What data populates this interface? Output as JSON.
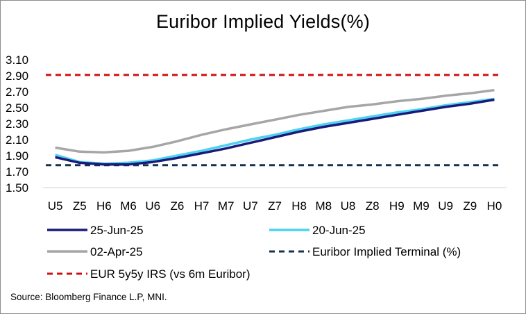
{
  "chart_data": {
    "type": "line",
    "title": "Euribor Implied Yields(%)",
    "categories": [
      "U5",
      "Z5",
      "H6",
      "M6",
      "U6",
      "Z6",
      "H7",
      "M7",
      "U7",
      "Z7",
      "H8",
      "M8",
      "U8",
      "Z8",
      "H9",
      "M9",
      "U9",
      "Z9",
      "H0"
    ],
    "ylim": [
      1.5,
      3.1
    ],
    "yticks": [
      "3.10",
      "2.90",
      "2.70",
      "2.50",
      "2.30",
      "2.10",
      "1.90",
      "1.70",
      "1.50"
    ],
    "xlabel": "",
    "ylabel": "",
    "series": [
      {
        "name": "25-Jun-25",
        "color": "#1a1a7a",
        "dash": "solid",
        "values": [
          1.88,
          1.81,
          1.79,
          1.79,
          1.82,
          1.87,
          1.93,
          1.99,
          2.06,
          2.13,
          2.2,
          2.26,
          2.31,
          2.36,
          2.41,
          2.46,
          2.51,
          2.55,
          2.6
        ]
      },
      {
        "name": "20-Jun-25",
        "color": "#4dd2f0",
        "dash": "solid",
        "values": [
          1.91,
          1.82,
          1.8,
          1.81,
          1.84,
          1.9,
          1.96,
          2.03,
          2.1,
          2.16,
          2.23,
          2.29,
          2.34,
          2.39,
          2.44,
          2.48,
          2.53,
          2.57,
          2.61
        ]
      },
      {
        "name": "02-Apr-25",
        "color": "#a6a6a6",
        "dash": "solid",
        "values": [
          2.0,
          1.95,
          1.94,
          1.96,
          2.01,
          2.08,
          2.16,
          2.23,
          2.29,
          2.35,
          2.41,
          2.46,
          2.51,
          2.54,
          2.58,
          2.61,
          2.65,
          2.68,
          2.72
        ]
      },
      {
        "name": "Euribor Implied Terminal (%)",
        "color": "#17324d",
        "dash": "dashed",
        "values": [
          1.78,
          1.78,
          1.78,
          1.78,
          1.78,
          1.78,
          1.78,
          1.78,
          1.78,
          1.78,
          1.78,
          1.78,
          1.78,
          1.78,
          1.78,
          1.78,
          1.78,
          1.78,
          1.78
        ]
      },
      {
        "name": "EUR 5y5y IRS (vs 6m Euribor)",
        "color": "#cc1111",
        "dash": "dashed",
        "values": [
          2.91,
          2.91,
          2.91,
          2.91,
          2.91,
          2.91,
          2.91,
          2.91,
          2.91,
          2.91,
          2.91,
          2.91,
          2.91,
          2.91,
          2.91,
          2.91,
          2.91,
          2.91,
          2.91
        ]
      }
    ],
    "legend_position": "bottom"
  },
  "source": "Source: Bloomberg Finance L.P, MNI."
}
